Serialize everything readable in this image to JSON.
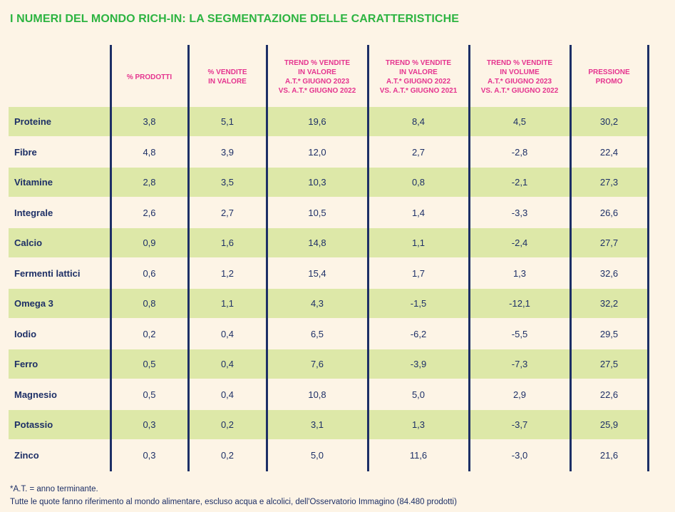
{
  "title": "I NUMERI DEL MONDO RICH-IN: LA SEGMENTAZIONE DELLE CARATTERISTICHE",
  "headers": [
    "% PRODOTTI",
    "% VENDITE\nIN VALORE",
    "TREND % VENDITE\nIN VALORE\nA.T.* GIUGNO 2023\nVS. A.T.* GIUGNO 2022",
    "TREND % VENDITE\nIN VALORE\nA.T.* GIUGNO 2022\nVS. A.T.* GIUGNO 2021",
    "TREND % VENDITE\nIN VOLUME\nA.T.* GIUGNO 2023\nVS. A.T.* GIUGNO 2022",
    "PRESSIONE\nPROMO"
  ],
  "rows": [
    {
      "label": "Proteine",
      "values": [
        "3,8",
        "5,1",
        "19,6",
        "8,4",
        "4,5",
        "30,2"
      ]
    },
    {
      "label": "Fibre",
      "values": [
        "4,8",
        "3,9",
        "12,0",
        "2,7",
        "-2,8",
        "22,4"
      ]
    },
    {
      "label": "Vitamine",
      "values": [
        "2,8",
        "3,5",
        "10,3",
        "0,8",
        "-2,1",
        "27,3"
      ]
    },
    {
      "label": "Integrale",
      "values": [
        "2,6",
        "2,7",
        "10,5",
        "1,4",
        "-3,3",
        "26,6"
      ]
    },
    {
      "label": "Calcio",
      "values": [
        "0,9",
        "1,6",
        "14,8",
        "1,1",
        "-2,4",
        "27,7"
      ]
    },
    {
      "label": "Fermenti lattici",
      "values": [
        "0,6",
        "1,2",
        "15,4",
        "1,7",
        "1,3",
        "32,6"
      ]
    },
    {
      "label": "Omega 3",
      "values": [
        "0,8",
        "1,1",
        "4,3",
        "-1,5",
        "-12,1",
        "32,2"
      ]
    },
    {
      "label": "Iodio",
      "values": [
        "0,2",
        "0,4",
        "6,5",
        "-6,2",
        "-5,5",
        "29,5"
      ]
    },
    {
      "label": "Ferro",
      "values": [
        "0,5",
        "0,4",
        "7,6",
        "-3,9",
        "-7,3",
        "27,5"
      ]
    },
    {
      "label": "Magnesio",
      "values": [
        "0,5",
        "0,4",
        "10,8",
        "5,0",
        "2,9",
        "22,6"
      ]
    },
    {
      "label": "Potassio",
      "values": [
        "0,3",
        "0,2",
        "3,1",
        "1,3",
        "-3,7",
        "25,9"
      ]
    },
    {
      "label": "Zinco",
      "values": [
        "0,3",
        "0,2",
        "5,0",
        "11,6",
        "-3,0",
        "21,6"
      ]
    }
  ],
  "footnotes": [
    "*A.T. = anno terminante.",
    "Tutte le quote fanno riferimento al mondo alimentare, escluso acqua e alcolici, dell'Osservatorio Immagino (84.480 prodotti)"
  ],
  "colors": {
    "title": "#2db441",
    "header": "#e5348f",
    "text": "#1d2f66",
    "row_highlight": "#dde8a8",
    "background": "#fdf4e6"
  }
}
